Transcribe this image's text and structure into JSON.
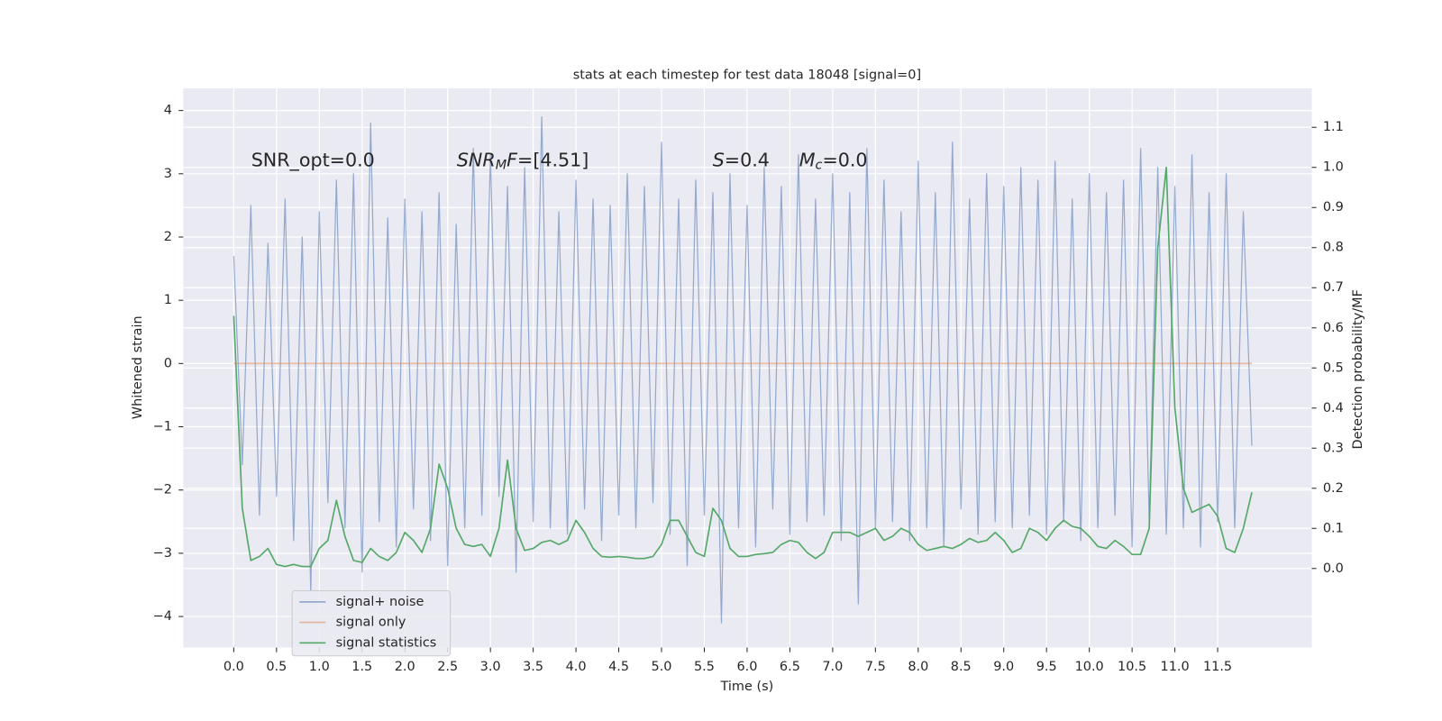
{
  "chart_data": {
    "type": "line",
    "title": "stats at each timestep for test data 18048 [signal=0]",
    "xlabel": "Time (s)",
    "ylabel": "Whitened strain",
    "y2label": "Detection probability/MF",
    "grid": true,
    "legend": "lower left",
    "xlim": [
      -0.59,
      12.6
    ],
    "ylim": [
      -4.49,
      4.35
    ],
    "y2lim": [
      -0.197,
      1.197
    ],
    "xticks": [
      {
        "value": 0,
        "label": "0.0"
      },
      0.5,
      {
        "value": 1,
        "label": "1.0"
      },
      1.5,
      {
        "value": 2,
        "label": "2.0"
      },
      2.5,
      {
        "value": 3,
        "label": "3.0"
      },
      3.5,
      {
        "value": 4,
        "label": "4.0"
      },
      4.5,
      {
        "value": 5,
        "label": "5.0"
      },
      5.5,
      {
        "value": 6,
        "label": "6.0"
      },
      6.5,
      {
        "value": 7,
        "label": "7.0"
      },
      7.5,
      {
        "value": 8,
        "label": "8.0"
      },
      8.5,
      {
        "value": 9,
        "label": "9.0"
      },
      9.5,
      {
        "value": 10,
        "label": "10.0"
      },
      10.5,
      {
        "value": 11,
        "label": "11.0"
      },
      11.5
    ],
    "yticks": [
      {
        "value": -4,
        "label": "−4"
      },
      {
        "value": -3,
        "label": "−3"
      },
      {
        "value": -2,
        "label": "−2"
      },
      {
        "value": -1,
        "label": "−1"
      },
      0,
      1,
      2,
      3,
      4
    ],
    "y2ticks": [
      {
        "value": 0,
        "label": "0.0"
      },
      0.1,
      0.2,
      0.3,
      0.4,
      0.5,
      0.6,
      0.7,
      0.8,
      0.9,
      {
        "value": 1,
        "label": "1.0"
      },
      1.1
    ],
    "x": [
      0,
      0.1,
      0.2,
      0.3,
      0.4,
      0.5,
      0.6,
      0.7,
      0.8,
      0.9,
      1,
      1.1,
      1.2,
      1.3,
      1.4,
      1.5,
      1.6,
      1.7,
      1.8,
      1.9,
      2,
      2.1,
      2.2,
      2.3,
      2.4,
      2.5,
      2.6,
      2.7,
      2.8,
      2.9,
      3,
      3.1,
      3.2,
      3.3,
      3.4,
      3.5,
      3.6,
      3.7,
      3.8,
      3.9,
      4,
      4.1,
      4.2,
      4.3,
      4.4,
      4.5,
      4.6,
      4.7,
      4.8,
      4.9,
      5,
      5.1,
      5.2,
      5.3,
      5.4,
      5.5,
      5.6,
      5.7,
      5.8,
      5.9,
      6,
      6.1,
      6.2,
      6.3,
      6.4,
      6.5,
      6.6,
      6.7,
      6.8,
      6.9,
      7,
      7.1,
      7.2,
      7.3,
      7.4,
      7.5,
      7.6,
      7.7,
      7.8,
      7.9,
      8,
      8.1,
      8.2,
      8.3,
      8.4,
      8.5,
      8.6,
      8.7,
      8.8,
      8.9,
      9,
      9.1,
      9.2,
      9.3,
      9.4,
      9.5,
      9.6,
      9.7,
      9.8,
      9.9,
      10,
      10.1,
      10.2,
      10.3,
      10.4,
      10.5,
      10.6,
      10.7,
      10.8,
      10.9,
      11,
      11.1,
      11.2,
      11.3,
      11.4,
      11.5,
      11.6,
      11.7,
      11.8,
      11.9
    ],
    "series": [
      {
        "name": "signal+ noise",
        "color": "#4c72b0",
        "values": [
          1.7,
          -1.6,
          2.5,
          -2.4,
          1.9,
          -2.1,
          2.6,
          -2.8,
          2.0,
          -3.6,
          2.4,
          -2.2,
          2.9,
          -2.6,
          3.0,
          -3.3,
          3.8,
          -2.5,
          2.3,
          -2.9,
          2.6,
          -2.3,
          2.4,
          -2.8,
          2.7,
          -3.2,
          2.2,
          -2.6,
          3.4,
          -2.4,
          3.3,
          -2.1,
          2.8,
          -3.3,
          3.1,
          -2.5,
          3.9,
          -2.6,
          2.4,
          -2.7,
          2.9,
          -2.3,
          2.6,
          -2.8,
          2.5,
          -2.4,
          3.0,
          -2.6,
          2.8,
          -2.2,
          3.5,
          -2.7,
          2.6,
          -3.2,
          2.9,
          -2.4,
          2.7,
          -4.1,
          3.0,
          -2.6,
          2.5,
          -2.9,
          3.1,
          -2.3,
          2.8,
          -2.7,
          3.3,
          -2.5,
          2.6,
          -2.4,
          3.0,
          -2.8,
          2.7,
          -3.8,
          3.4,
          -2.6,
          2.9,
          -2.5,
          2.4,
          -2.8,
          3.2,
          -2.6,
          2.7,
          -2.9,
          3.5,
          -2.3,
          2.6,
          -2.7,
          3.0,
          -2.5,
          2.8,
          -2.6,
          3.1,
          -2.4,
          2.9,
          -2.7,
          3.2,
          -2.5,
          2.6,
          -2.8,
          3.0,
          -2.6,
          2.7,
          -2.4,
          2.9,
          -2.9,
          3.4,
          -2.5,
          3.1,
          -2.7,
          2.8,
          -2.6,
          3.3,
          -2.9,
          2.7,
          -2.5,
          3.0,
          -2.6,
          2.4,
          -1.3
        ]
      },
      {
        "name": "signal only",
        "color": "#dd8452",
        "x": [
          0,
          11.9
        ],
        "values": [
          0,
          0
        ]
      },
      {
        "name": "signal statistics",
        "color": "#55a868",
        "axis": "y2",
        "values": [
          0.63,
          0.15,
          0.02,
          0.03,
          0.05,
          0.01,
          0.005,
          0.01,
          0.005,
          0.005,
          0.05,
          0.07,
          0.17,
          0.08,
          0.02,
          0.015,
          0.05,
          0.03,
          0.02,
          0.04,
          0.09,
          0.07,
          0.04,
          0.1,
          0.26,
          0.2,
          0.1,
          0.06,
          0.055,
          0.06,
          0.03,
          0.1,
          0.27,
          0.1,
          0.045,
          0.05,
          0.065,
          0.07,
          0.06,
          0.07,
          0.12,
          0.09,
          0.05,
          0.03,
          0.028,
          0.03,
          0.028,
          0.025,
          0.025,
          0.03,
          0.06,
          0.12,
          0.12,
          0.08,
          0.04,
          0.03,
          0.15,
          0.12,
          0.05,
          0.03,
          0.03,
          0.035,
          0.037,
          0.04,
          0.06,
          0.07,
          0.065,
          0.04,
          0.025,
          0.04,
          0.09,
          0.09,
          0.09,
          0.08,
          0.09,
          0.1,
          0.07,
          0.08,
          0.1,
          0.09,
          0.06,
          0.045,
          0.05,
          0.055,
          0.05,
          0.06,
          0.075,
          0.065,
          0.07,
          0.09,
          0.07,
          0.04,
          0.05,
          0.1,
          0.09,
          0.07,
          0.1,
          0.12,
          0.105,
          0.1,
          0.08,
          0.055,
          0.05,
          0.07,
          0.055,
          0.035,
          0.035,
          0.1,
          0.8,
          1.0,
          0.4,
          0.2,
          0.14,
          0.15,
          0.16,
          0.13,
          0.05,
          0.04,
          0.1,
          0.19
        ]
      }
    ],
    "annotations": [
      [
        {
          "text": "SNR_opt=0.0"
        }
      ],
      [
        {
          "text": "SNR",
          "italic": true
        },
        {
          "text": "M",
          "italic": true,
          "sub": true
        },
        {
          "text": "F",
          "italic": true
        },
        {
          "text": "=[4.51]"
        }
      ],
      [
        {
          "text": "S",
          "italic": true
        },
        {
          "text": "=0.4"
        }
      ],
      [
        {
          "text": "M",
          "italic": true
        },
        {
          "text": "c",
          "italic": true,
          "sub": true
        },
        {
          "text": "=0.0"
        }
      ]
    ]
  }
}
